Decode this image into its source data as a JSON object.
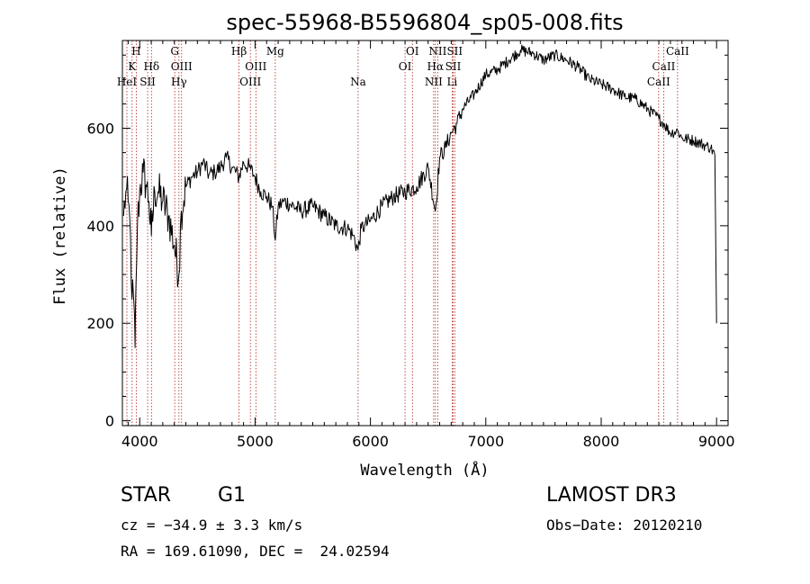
{
  "chart_data": {
    "type": "line",
    "title": "spec-55968-B5596804_sp05-008.fits",
    "xlabel": "Wavelength (Å)",
    "ylabel": "Flux (relative)",
    "xlim": [
      3850,
      9100
    ],
    "ylim": [
      -10,
      780
    ],
    "xticks": [
      4000,
      5000,
      6000,
      7000,
      8000,
      9000
    ],
    "xtick_labels": [
      "4000",
      "5000",
      "6000",
      "7000",
      "8000",
      "9000"
    ],
    "yticks": [
      0,
      200,
      400,
      600
    ],
    "ytick_labels": [
      "0",
      "200",
      "400",
      "600"
    ],
    "series": [
      {
        "name": "spectrum",
        "x": [
          3860,
          3880,
          3900,
          3920,
          3933,
          3945,
          3960,
          3968,
          3980,
          4000,
          4030,
          4060,
          4080,
          4101,
          4130,
          4160,
          4200,
          4250,
          4300,
          4340,
          4360,
          4400,
          4450,
          4500,
          4550,
          4600,
          4650,
          4700,
          4750,
          4800,
          4861,
          4900,
          4950,
          5000,
          5050,
          5100,
          5150,
          5175,
          5200,
          5250,
          5300,
          5400,
          5500,
          5600,
          5700,
          5800,
          5850,
          5893,
          5920,
          5950,
          6000,
          6100,
          6200,
          6300,
          6400,
          6500,
          6563,
          6600,
          6650,
          6700,
          6750,
          6800,
          6900,
          7000,
          7100,
          7200,
          7300,
          7400,
          7500,
          7600,
          7700,
          7800,
          7900,
          8000,
          8100,
          8200,
          8300,
          8400,
          8500,
          8542,
          8600,
          8662,
          8700,
          8800,
          8900,
          8950,
          8985,
          9000
        ],
        "y": [
          420,
          470,
          450,
          380,
          250,
          260,
          150,
          280,
          400,
          470,
          510,
          480,
          450,
          380,
          470,
          470,
          450,
          420,
          360,
          300,
          430,
          480,
          500,
          510,
          530,
          505,
          510,
          520,
          540,
          520,
          500,
          530,
          520,
          500,
          470,
          460,
          440,
          370,
          440,
          450,
          445,
          430,
          440,
          420,
          400,
          395,
          380,
          350,
          395,
          400,
          410,
          440,
          460,
          470,
          480,
          520,
          430,
          540,
          560,
          590,
          610,
          640,
          670,
          710,
          720,
          740,
          760,
          755,
          740,
          750,
          740,
          725,
          700,
          690,
          680,
          665,
          660,
          640,
          620,
          610,
          590,
          595,
          580,
          575,
          565,
          560,
          545,
          200
        ]
      }
    ],
    "lines": [
      {
        "name": "H",
        "wavelength": 3970,
        "row": 0
      },
      {
        "name": "K",
        "wavelength": 3934,
        "row": 1
      },
      {
        "name": "HeI",
        "wavelength": 3889,
        "row": 2
      },
      {
        "name": "SII",
        "wavelength": 4069,
        "row": 2
      },
      {
        "name": "Hδ",
        "wavelength": 4102,
        "row": 1
      },
      {
        "name": "G",
        "wavelength": 4304,
        "row": 0
      },
      {
        "name": "OIII",
        "wavelength": 4363,
        "row": 1
      },
      {
        "name": "Hγ",
        "wavelength": 4340,
        "row": 2
      },
      {
        "name": "Hβ",
        "wavelength": 4861,
        "row": 0
      },
      {
        "name": "OIII",
        "wavelength": 5007,
        "row": 1
      },
      {
        "name": "OIII",
        "wavelength": 4959,
        "row": 2
      },
      {
        "name": "Mg",
        "wavelength": 5175,
        "row": 0
      },
      {
        "name": "Na",
        "wavelength": 5893,
        "row": 2
      },
      {
        "name": "OI",
        "wavelength": 6364,
        "row": 0
      },
      {
        "name": "OI",
        "wavelength": 6300,
        "row": 1
      },
      {
        "name": "NII",
        "wavelength": 6583,
        "row": 0
      },
      {
        "name": "SII",
        "wavelength": 6731,
        "row": 0
      },
      {
        "name": "Hα",
        "wavelength": 6563,
        "row": 1
      },
      {
        "name": "SII",
        "wavelength": 6717,
        "row": 1
      },
      {
        "name": "NII",
        "wavelength": 6548,
        "row": 2
      },
      {
        "name": "Li",
        "wavelength": 6708,
        "row": 2
      },
      {
        "name": "CaII",
        "wavelength": 8662,
        "row": 0
      },
      {
        "name": "CaII",
        "wavelength": 8542,
        "row": 1
      },
      {
        "name": "CaII",
        "wavelength": 8498,
        "row": 2
      }
    ]
  },
  "info": {
    "class": "STAR",
    "subclass": "G1",
    "survey": "LAMOST DR3",
    "cz": "cz = −34.9 ± 3.3 km/s",
    "obs_date": "Obs−Date: 20120210",
    "radec": "RA = 169.61090, DEC =  24.02594"
  },
  "colors": {
    "line_marker": "#b22222",
    "spectrum": "#000000",
    "axis": "#000000"
  }
}
